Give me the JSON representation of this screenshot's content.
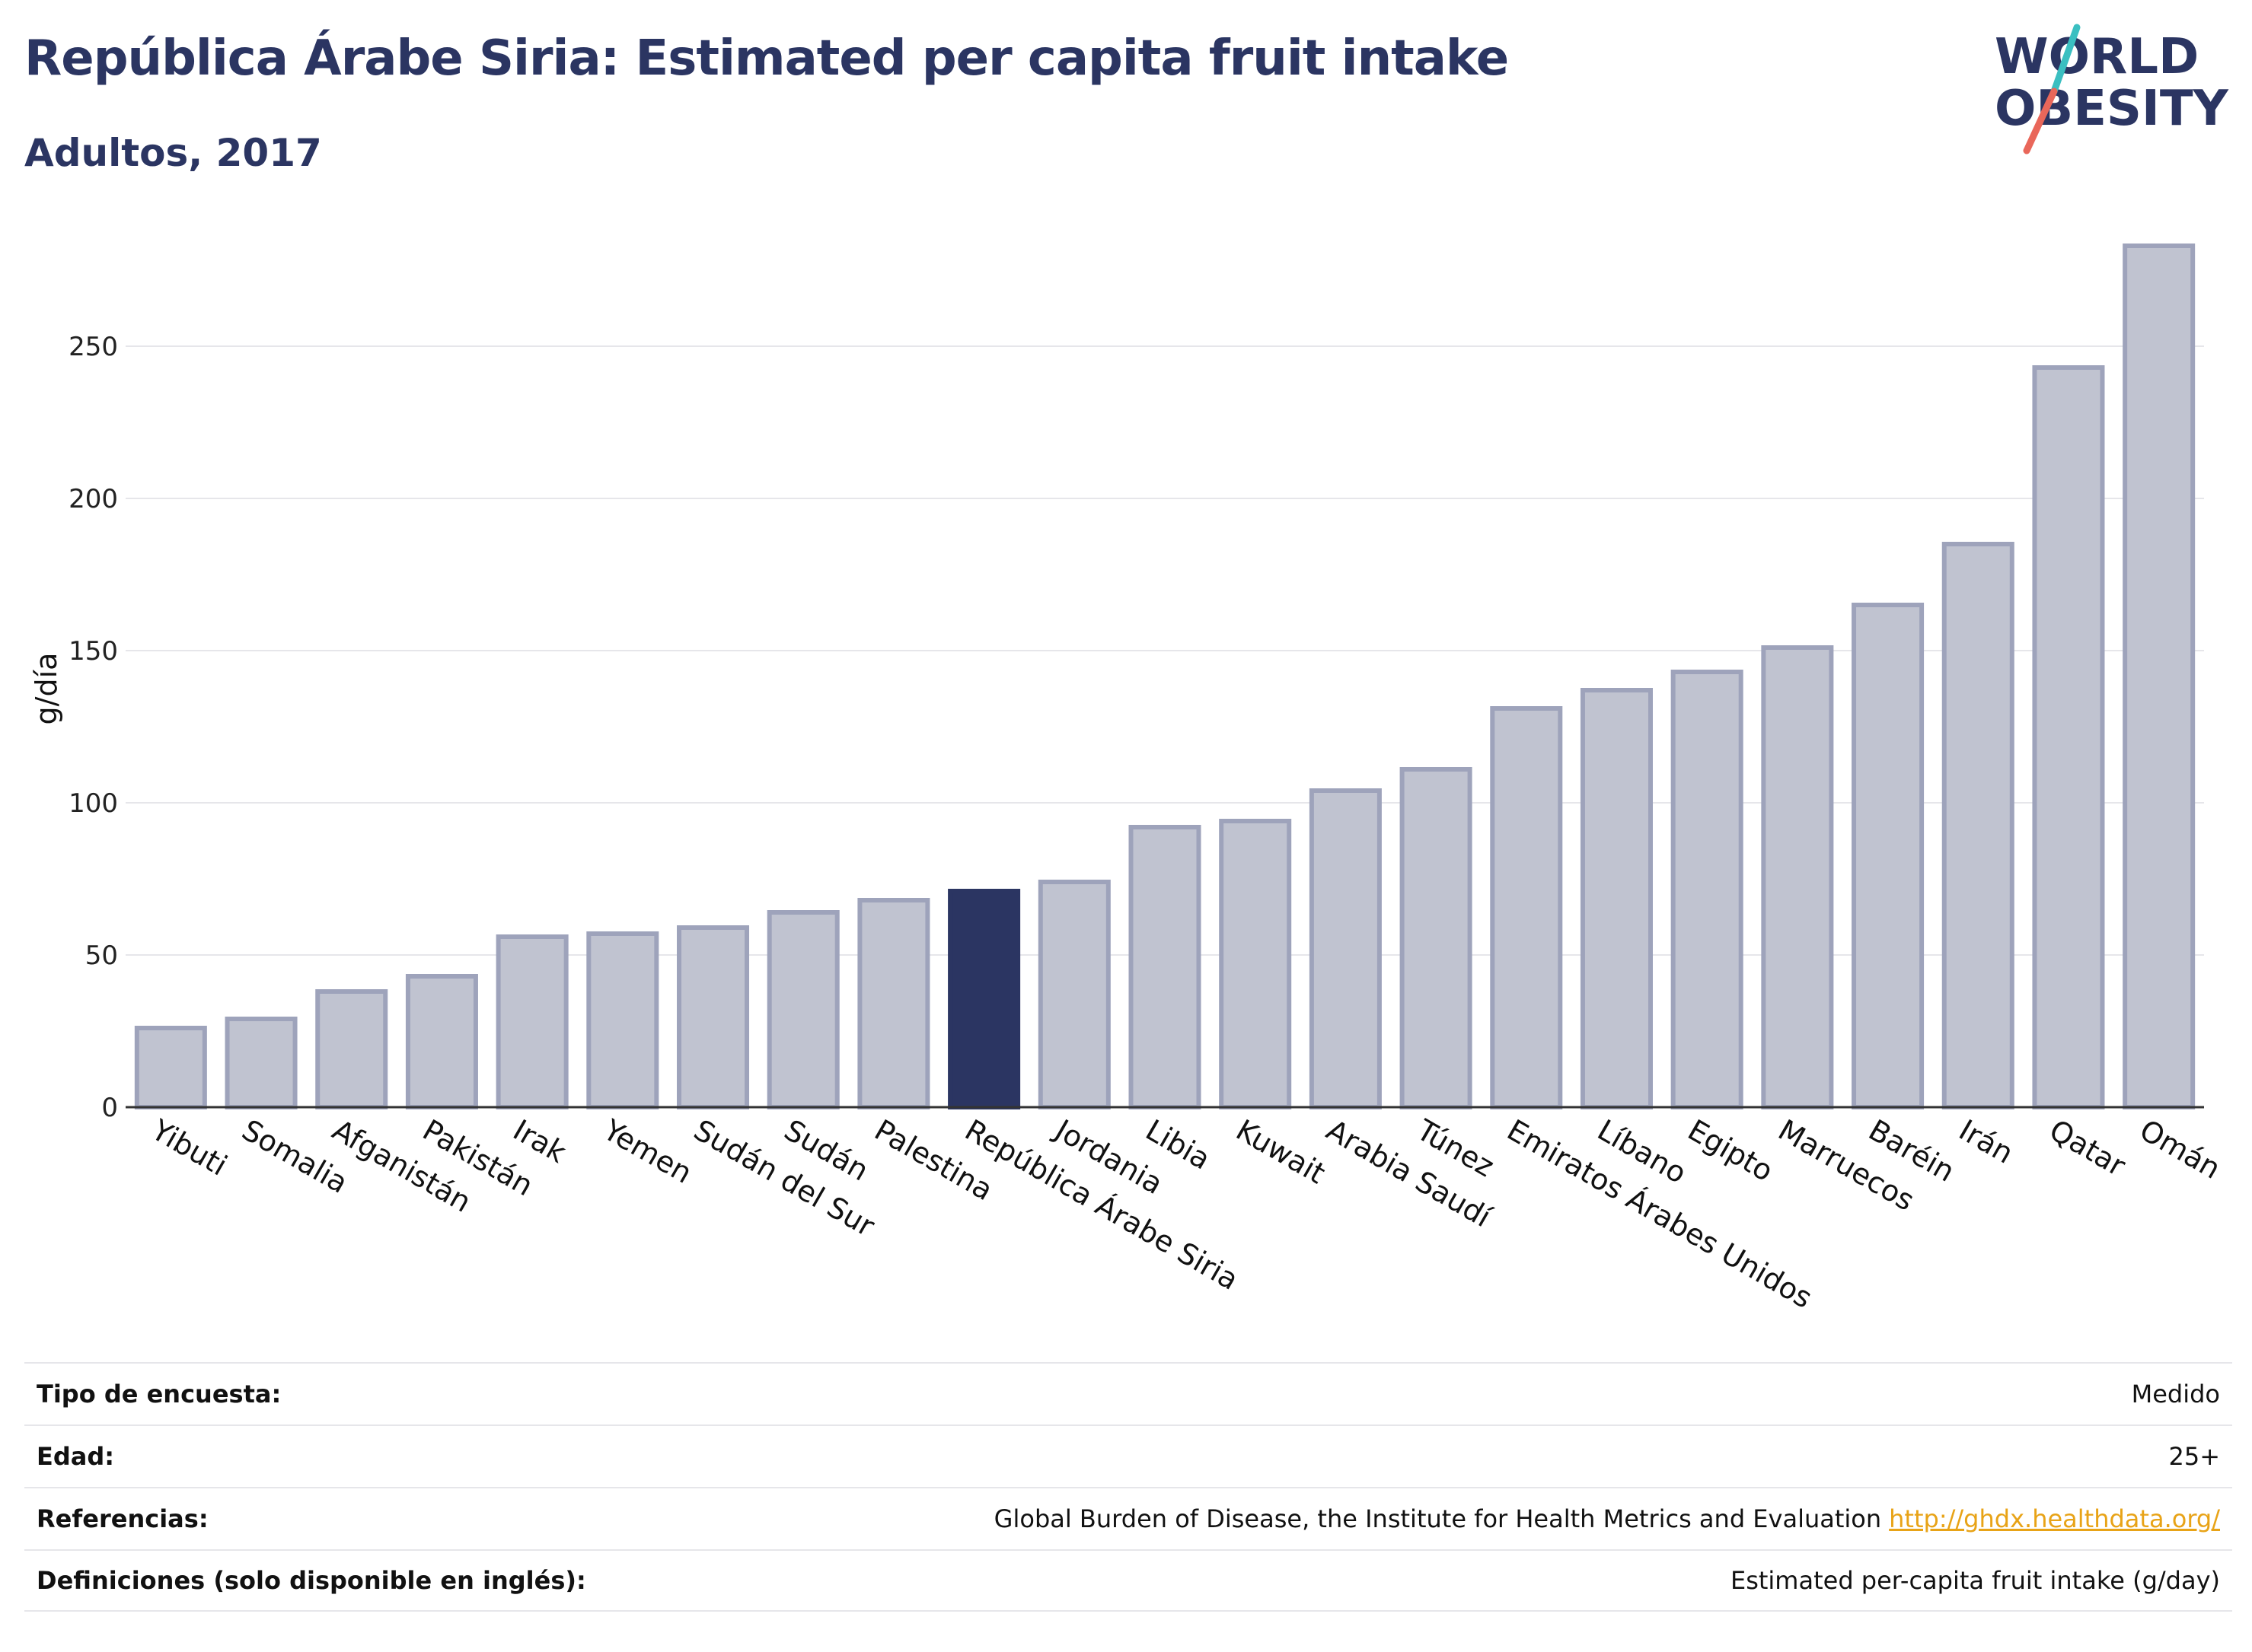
{
  "header": {
    "title": "República Árabe Siria: Estimated per capita fruit intake",
    "subtitle": "Adultos, 2017"
  },
  "logo": {
    "line1": "WORLD",
    "line2": "OBESITY"
  },
  "colors": {
    "bar": "#c0c3d0",
    "bar_border": "#9ea3bb",
    "highlight": "#2b3562",
    "title": "#2b3562",
    "logo_slash_top": "#3bbfc1",
    "logo_slash_bottom": "#e9675a"
  },
  "chart_data": {
    "type": "bar",
    "title": "República Árabe Siria: Estimated per capita fruit intake",
    "subtitle": "Adultos, 2017",
    "xlabel": "",
    "ylabel": "g/día",
    "ylim": [
      0,
      285
    ],
    "yticks": [
      0,
      50,
      100,
      150,
      200,
      250
    ],
    "grid": true,
    "highlight": "República Árabe Siria",
    "categories": [
      "Yibuti",
      "Somalia",
      "Afganistán",
      "Pakistán",
      "Irak",
      "Yemen",
      "Sudán del Sur",
      "Sudán",
      "Palestina",
      "República Árabe Siria",
      "Jordania",
      "Libia",
      "Kuwait",
      "Arabia Saudí",
      "Túnez",
      "Emiratos Árabes Unidos",
      "Líbano",
      "Egipto",
      "Marruecos",
      "Baréin",
      "Irán",
      "Qatar",
      "Omán"
    ],
    "values": [
      26,
      29,
      38,
      43,
      56,
      57,
      59,
      64,
      68,
      71,
      74,
      92,
      94,
      104,
      111,
      131,
      137,
      143,
      151,
      165,
      185,
      243,
      283
    ]
  },
  "info": {
    "rows": [
      {
        "label": "Tipo de encuesta:",
        "value": "Medido",
        "link": ""
      },
      {
        "label": "Edad:",
        "value": "25+",
        "link": ""
      },
      {
        "label": "Referencias:",
        "value": "Global Burden of Disease, the Institute for Health Metrics and Evaluation",
        "link": "http://ghdx.healthdata.org/"
      },
      {
        "label": "Definiciones (solo disponible en inglés):",
        "value": "Estimated per-capita fruit intake (g/day)",
        "link": ""
      }
    ]
  }
}
